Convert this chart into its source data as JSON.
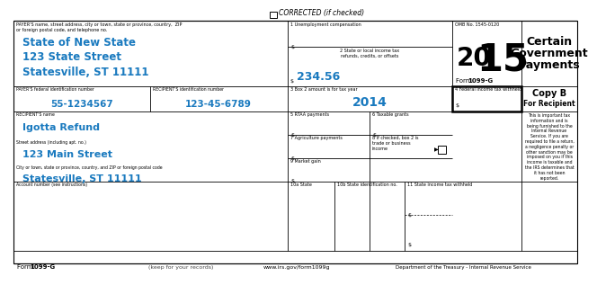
{
  "bg_color": "#ffffff",
  "border_color": "#000000",
  "blue_color": "#1a7abf",
  "corrected_text": "CORRECTED (if checked)",
  "payer_label": "PAYER'S name, street address, city or town, state or province, country,  ZIP\nor foreign postal code, and telephone no.",
  "payer_name": "State of New State",
  "payer_street": "123 State Street",
  "payer_city": "Statesville, ST 11111",
  "payer_fed_id_label": "PAYER'S federal identification number",
  "payer_fed_id": "55-1234567",
  "recipient_id_label": "RECIPIENT'S identification number",
  "recipient_id": "123-45-6789",
  "recipient_name_label": "RECIPIENT'S name",
  "recipient_name": "Igotta Refund",
  "street_label": "Street address (including apt. no.)",
  "recipient_street": "123 Main Street",
  "city_label": "City or town, state or province, country, and ZIP or foreign postal code",
  "recipient_city": "Statesville, ST 11111",
  "account_label": "Account number (see instructions)",
  "box1_label": "1 Unemployment compensation",
  "box2_label": "2 State or local income tax\nrefunds, credits, or offsets",
  "box2_value": "234.56",
  "box3_label": "3 Box 2 amount is for tax year",
  "box3_value": "2014",
  "box4_label": "4 Federal income tax withheld",
  "box5_label": "5 RTAA payments",
  "box6_label": "6 Taxable grants",
  "box7_label": "7 Agriculture payments",
  "box8_label": "8 If checked, box 2 is\ntrade or business\nincome",
  "box9_label": "9 Market gain",
  "box10a_label": "10a State",
  "box10b_label": "10b State identification no.",
  "box11_label": "11 State income tax withheld",
  "omb_text": "OMB No. 1545-0120",
  "year_20": "20",
  "year_15": "15",
  "form_label": "Form",
  "form_name": "1099-G",
  "right_title1": "Certain",
  "right_title2": "Government",
  "right_title3": "Payments",
  "copy_b": "Copy B",
  "for_recipient": "For Recipient",
  "copy_b_text": "This is important tax\ninformation and is\nbeing furnished to the\nInternal Revenue\nService. If you are\nrequired to file a return,\na negligence penalty or\nother sanction may be\nimposed on you if this\nincome is taxable and\nthe IRS determines that\nit has not been\nreported.",
  "footer_form_label": "Form",
  "footer_form_name": "1099-G",
  "footer_keep": "(keep for your records)",
  "footer_url": "www.irs.gov/form1099g",
  "footer_dept": "Department of the Treasury - Internal Revenue Service"
}
